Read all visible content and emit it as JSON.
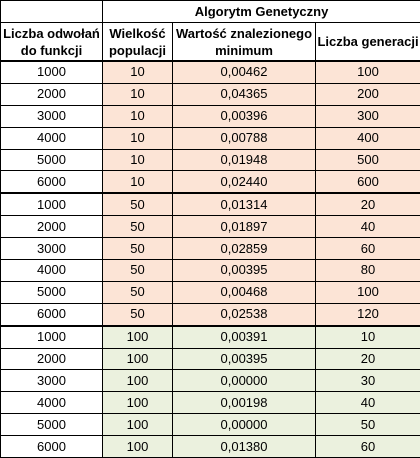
{
  "table": {
    "group_title": "Algorytm Genetyczny",
    "headers": {
      "calls": "Liczba odwołań do funkcji",
      "pop": "Wielkość populacji",
      "min": "Wartość znalezionego minimum",
      "gens": "Liczba generacji"
    },
    "colors": {
      "group1_fill": "#fce4d6",
      "group2_fill": "#fce4d6",
      "group3_fill": "#ebf1de"
    },
    "rows": [
      [
        "1000",
        "10",
        "0,00462",
        "100"
      ],
      [
        "2000",
        "10",
        "0,04365",
        "200"
      ],
      [
        "3000",
        "10",
        "0,00396",
        "300"
      ],
      [
        "4000",
        "10",
        "0,00788",
        "400"
      ],
      [
        "5000",
        "10",
        "0,01948",
        "500"
      ],
      [
        "6000",
        "10",
        "0,02440",
        "600"
      ],
      [
        "1000",
        "50",
        "0,01314",
        "20"
      ],
      [
        "2000",
        "50",
        "0,01897",
        "40"
      ],
      [
        "3000",
        "50",
        "0,02859",
        "60"
      ],
      [
        "4000",
        "50",
        "0,00395",
        "80"
      ],
      [
        "5000",
        "50",
        "0,00468",
        "100"
      ],
      [
        "6000",
        "50",
        "0,02538",
        "120"
      ],
      [
        "1000",
        "100",
        "0,00391",
        "10"
      ],
      [
        "2000",
        "100",
        "0,00395",
        "20"
      ],
      [
        "3000",
        "100",
        "0,00000",
        "30"
      ],
      [
        "4000",
        "100",
        "0,00198",
        "40"
      ],
      [
        "5000",
        "100",
        "0,00000",
        "50"
      ],
      [
        "6000",
        "100",
        "0,01380",
        "60"
      ]
    ]
  }
}
